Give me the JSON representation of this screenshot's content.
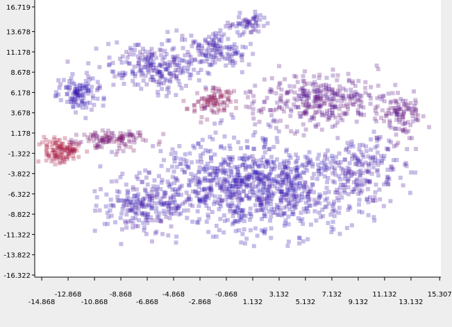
{
  "chart_data": {
    "type": "scatter",
    "title": "",
    "xlabel": "",
    "ylabel": "",
    "xlim": [
      -15.4,
      15.4
    ],
    "ylim": [
      -16.322,
      16.719
    ],
    "grid": false,
    "legend": "none",
    "marker": "square",
    "color_range": {
      "low": "#2a14b8",
      "high": "#b01030"
    },
    "x_ticks": [
      {
        "value": -14.868,
        "label": "-14.868",
        "row": 2
      },
      {
        "value": -12.868,
        "label": "-12.868",
        "row": 1
      },
      {
        "value": -10.868,
        "label": "-10.868",
        "row": 2
      },
      {
        "value": -8.868,
        "label": "-8.868",
        "row": 1
      },
      {
        "value": -6.868,
        "label": "-6.868",
        "row": 2
      },
      {
        "value": -4.868,
        "label": "-4.868",
        "row": 1
      },
      {
        "value": -2.868,
        "label": "-2.868",
        "row": 2
      },
      {
        "value": -0.868,
        "label": "-0.868",
        "row": 1
      },
      {
        "value": 1.132,
        "label": "1.132",
        "row": 2
      },
      {
        "value": 3.132,
        "label": "3.132",
        "row": 1
      },
      {
        "value": 5.132,
        "label": "5.132",
        "row": 2
      },
      {
        "value": 7.132,
        "label": "7.132",
        "row": 1
      },
      {
        "value": 9.132,
        "label": "9.132",
        "row": 2
      },
      {
        "value": 11.132,
        "label": "11.132",
        "row": 1
      },
      {
        "value": 13.132,
        "label": "13.132",
        "row": 2
      },
      {
        "value": 15.307,
        "label": "15.307",
        "row": 1
      }
    ],
    "y_ticks": [
      {
        "value": 16.719,
        "label": "16.719"
      },
      {
        "value": 13.678,
        "label": "13.678"
      },
      {
        "value": 11.178,
        "label": "11.178"
      },
      {
        "value": 8.678,
        "label": "8.678"
      },
      {
        "value": 6.178,
        "label": "6.178"
      },
      {
        "value": 3.678,
        "label": "3.678"
      },
      {
        "value": 1.178,
        "label": "1.178"
      },
      {
        "value": -1.322,
        "label": "-1.322"
      },
      {
        "value": -3.822,
        "label": "-3.822"
      },
      {
        "value": -6.322,
        "label": "-6.322"
      },
      {
        "value": -8.822,
        "label": "-8.822"
      },
      {
        "value": -11.322,
        "label": "-11.322"
      },
      {
        "value": -13.822,
        "label": "-13.822"
      },
      {
        "value": -16.322,
        "label": "-16.322"
      }
    ],
    "clusters": [
      {
        "name": "main-body",
        "center": [
          1.2,
          -5.2
        ],
        "spread": [
          6.8,
          5.0
        ],
        "count": 950,
        "redness": 0.08
      },
      {
        "name": "main-lower-left",
        "center": [
          -7.0,
          -7.8
        ],
        "spread": [
          3.0,
          3.2
        ],
        "count": 200,
        "redness": 0.12
      },
      {
        "name": "main-right",
        "center": [
          9.5,
          -3.5
        ],
        "spread": [
          2.5,
          4.2
        ],
        "count": 180,
        "redness": 0.15
      },
      {
        "name": "top-right-lobe",
        "center": [
          6.0,
          5.2
        ],
        "spread": [
          4.6,
          2.8
        ],
        "count": 340,
        "redness": 0.35
      },
      {
        "name": "top-right-edge",
        "center": [
          12.5,
          3.5
        ],
        "spread": [
          1.6,
          3.0
        ],
        "count": 100,
        "redness": 0.4
      },
      {
        "name": "top-left-lobe",
        "center": [
          -6.2,
          9.3
        ],
        "spread": [
          3.8,
          2.6
        ],
        "count": 240,
        "redness": 0.12
      },
      {
        "name": "top-left-arm",
        "center": [
          -12.0,
          6.0
        ],
        "spread": [
          1.6,
          2.2
        ],
        "count": 110,
        "redness": 0.08
      },
      {
        "name": "top-center-arm",
        "center": [
          -1.4,
          11.5
        ],
        "spread": [
          1.8,
          2.3
        ],
        "count": 110,
        "redness": 0.1
      },
      {
        "name": "top-peak",
        "center": [
          0.8,
          14.8
        ],
        "spread": [
          1.0,
          1.0
        ],
        "count": 50,
        "redness": 0.15
      },
      {
        "name": "purple-patch",
        "center": [
          -1.8,
          5.0
        ],
        "spread": [
          1.5,
          1.5
        ],
        "count": 90,
        "redness": 0.7
      },
      {
        "name": "red-left-cluster",
        "center": [
          -13.4,
          -1.1
        ],
        "spread": [
          1.2,
          1.4
        ],
        "count": 110,
        "redness": 0.92
      },
      {
        "name": "left-band",
        "center": [
          -9.5,
          0.4
        ],
        "spread": [
          2.5,
          1.0
        ],
        "count": 110,
        "redness": 0.55
      }
    ]
  }
}
